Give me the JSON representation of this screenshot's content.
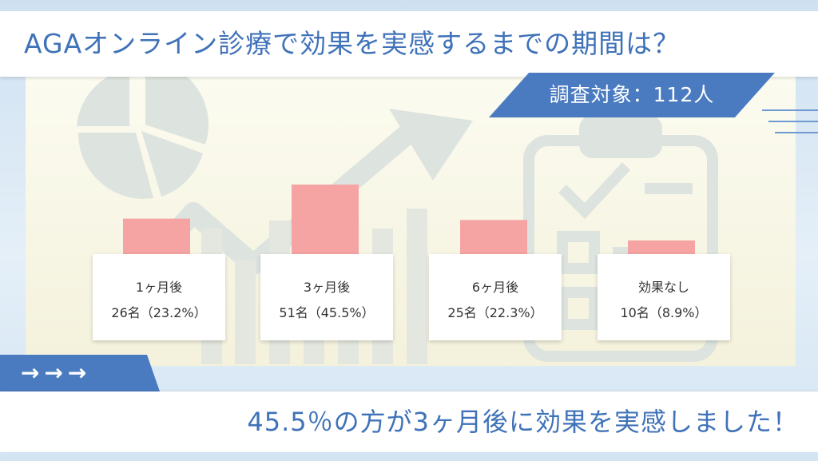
{
  "header": {
    "title": "AGAオンライン診療で効果を実感するまでの期間は？"
  },
  "badge": {
    "survey": "調査対象：112人"
  },
  "arrows": {
    "text": "→→→"
  },
  "footer": {
    "conclusion": "45.5％の方が3ヶ月後に効果を実感しました！"
  },
  "colors": {
    "accent": "#4a7bc0",
    "bar": "#f5a3a3",
    "text_blue": "#3f72b8"
  },
  "chart_data": {
    "type": "bar",
    "categories": [
      "1ヶ月後",
      "3ヶ月後",
      "6ヶ月後",
      "効果なし"
    ],
    "values": [
      26,
      51,
      25,
      10
    ],
    "count_labels": [
      "26名（23.2%）",
      "51名（45.5%）",
      "25名（22.3%）",
      "10名（8.9%）"
    ],
    "percentages": [
      23.2,
      45.5,
      22.3,
      8.9
    ],
    "ylim": [
      0,
      60
    ],
    "grid": false,
    "legend": "none"
  }
}
